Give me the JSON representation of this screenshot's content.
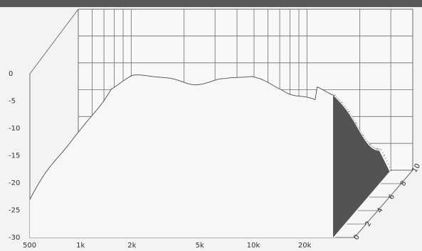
{
  "chart_data": {
    "type": "waterfall",
    "title": "",
    "xlabel": "",
    "ylabel": "",
    "x_scale": "log",
    "x_range": [
      500,
      40000
    ],
    "x_tick_labels": [
      "500",
      "1k",
      "2k",
      "5k",
      "10k",
      "20k"
    ],
    "x_tick_values": [
      500,
      1000,
      2000,
      5000,
      10000,
      20000
    ],
    "y_range": [
      -30,
      0
    ],
    "y_tick_labels": [
      "0",
      "-5",
      "-10",
      "-15",
      "-20",
      "-25",
      "-30"
    ],
    "y_tick_values": [
      0,
      -5,
      -10,
      -15,
      -20,
      -25,
      -30
    ],
    "depth_tick_labels": [
      "0",
      "2",
      "4",
      "6",
      "8",
      "10"
    ],
    "depth_tick_values": [
      0,
      2,
      4,
      6,
      8,
      10
    ],
    "grid": true,
    "colors": {
      "background": "#f3f3f3",
      "grid": "#6d6d6d",
      "trace": "#3a3a3a",
      "floor": "#4b4b4b",
      "topband": "#595959"
    },
    "series": [
      {
        "x": [
          500,
          1000,
          1500,
          2000,
          3000,
          5000,
          7000,
          10000,
          15000,
          20000,
          30000
        ],
        "y": [
          -23,
          -10,
          -2,
          -1,
          -1,
          -1,
          -1.5,
          -1,
          -2,
          -4,
          -7
        ]
      }
    ]
  }
}
